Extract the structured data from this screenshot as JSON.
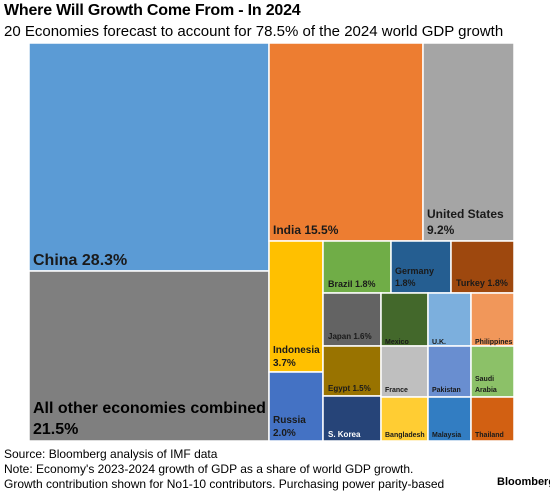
{
  "title": "Where Will Growth Come From - In 2024",
  "subtitle": "20 Economies forecast to account for 78.5% of the 2024 world GDP growth",
  "footer": {
    "source": "Source: Bloomberg analysis of IMF data",
    "note": "Note: Economy's 2023-2024 growth of GDP as a share of world GDP growth.",
    "note2": "Growth contribution shown for No1-10 contributors. Purchasing power parity-based",
    "brand": "Bloomberg"
  },
  "chart_data": {
    "type": "treemap",
    "title": "Where Will Growth Come From - In 2024",
    "subtitle": "20 Economies forecast to account for 78.5% of the 2024 world GDP growth",
    "unit": "% of world GDP growth",
    "items": [
      {
        "name": "China",
        "value": 28.3,
        "label": "China 28.3%",
        "color": "#5b9bd5",
        "text_color": "#1a1a1a"
      },
      {
        "name": "All other economies combined",
        "value": 21.5,
        "label": "All other economies combined 21.5%",
        "color": "#7f7f7f",
        "text_color": "#000000"
      },
      {
        "name": "India",
        "value": 15.5,
        "label": "India 15.5%",
        "color": "#ed7d31",
        "text_color": "#1a1a1a"
      },
      {
        "name": "United States",
        "value": 9.2,
        "label": "United States 9.2%",
        "color": "#a5a5a5",
        "text_color": "#1a1a1a"
      },
      {
        "name": "Indonesia",
        "value": 3.7,
        "label": "Indonesia 3.7%",
        "color": "#ffc000",
        "text_color": "#1a1a1a"
      },
      {
        "name": "Russia",
        "value": 2.0,
        "label": "Russia 2.0%",
        "color": "#4472c4",
        "text_color": "#1a1a1a"
      },
      {
        "name": "Brazil",
        "value": 1.8,
        "label": "Brazil 1.8%",
        "color": "#70ad47",
        "text_color": "#1a1a1a"
      },
      {
        "name": "Germany",
        "value": 1.8,
        "label": "Germany 1.8%",
        "color": "#255e91",
        "text_color": "#1a1a1a"
      },
      {
        "name": "Turkey",
        "value": 1.8,
        "label": "Turkey 1.8%",
        "color": "#9e480e",
        "text_color": "#1a1a1a"
      },
      {
        "name": "Japan",
        "value": 1.6,
        "label": "Japan 1.6%",
        "color": "#636363",
        "text_color": "#1a1a1a"
      },
      {
        "name": "Egypt",
        "value": 1.5,
        "label": "Egypt 1.5%",
        "color": "#997300",
        "text_color": "#1a1a1a"
      },
      {
        "name": "S. Korea",
        "value": null,
        "label": "S. Korea",
        "color": "#264478",
        "text_color": "#ffffff"
      },
      {
        "name": "Mexico",
        "value": null,
        "label": "Mexico",
        "color": "#43682b",
        "text_color": "#1a1a1a"
      },
      {
        "name": "France",
        "value": null,
        "label": "France",
        "color": "#bfbfbf",
        "text_color": "#1a1a1a"
      },
      {
        "name": "Bangladesh",
        "value": null,
        "label": "Bangladesh",
        "color": "#ffcd33",
        "text_color": "#1a1a1a"
      },
      {
        "name": "U.K.",
        "value": null,
        "label": "U.K.",
        "color": "#7cafdd",
        "text_color": "#1a1a1a"
      },
      {
        "name": "Pakistan",
        "value": null,
        "label": "Pakistan",
        "color": "#698ed0",
        "text_color": "#1a1a1a"
      },
      {
        "name": "Malaysia",
        "value": null,
        "label": "Malaysia",
        "color": "#327dc2",
        "text_color": "#1a1a1a"
      },
      {
        "name": "Philippines",
        "value": null,
        "label": "Philippines",
        "color": "#f1975a",
        "text_color": "#1a1a1a"
      },
      {
        "name": "Saudi Arabia",
        "value": null,
        "label": "Saudi Arabia",
        "color": "#8cc168",
        "text_color": "#1a1a1a"
      },
      {
        "name": "Thailand",
        "value": null,
        "label": "Thailand",
        "color": "#d26012",
        "text_color": "#1a1a1a"
      }
    ]
  }
}
